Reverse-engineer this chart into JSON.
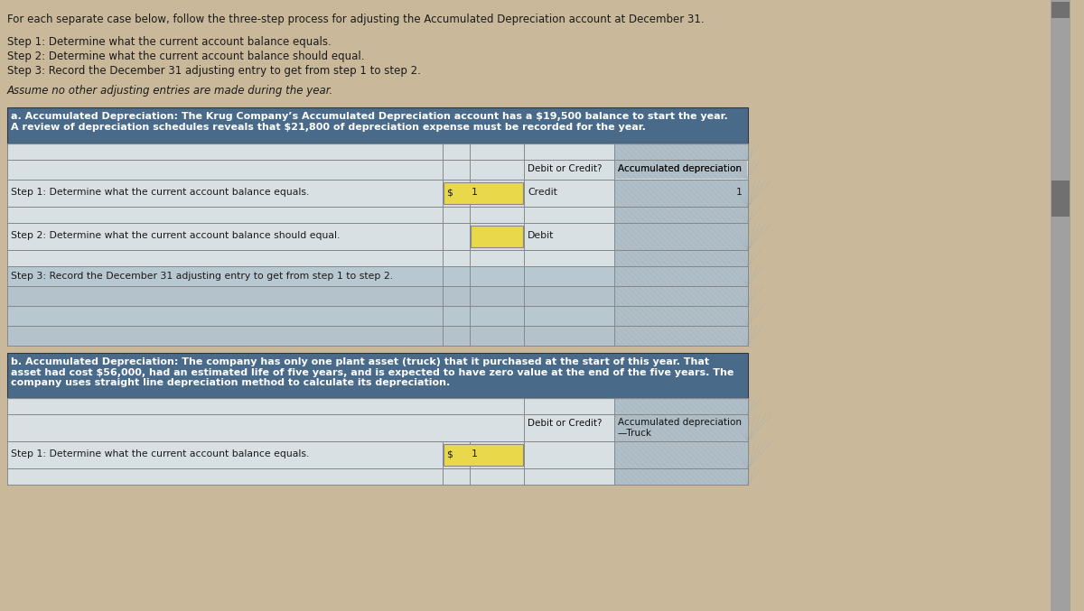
{
  "page_bg": "#c9b99a",
  "header_text": "For each separate case below, follow the three-step process for adjusting the Accumulated Depreciation account at December 31.",
  "step1_text": "Step 1: Determine what the current account balance equals.",
  "step2_text": "Step 2: Determine what the current account balance should equal.",
  "step3_text": "Step 3: Record the December 31 adjusting entry to get from step 1 to step 2.",
  "assume_text": "Assume no other adjusting entries are made during the year.",
  "section_a_header": "a. Accumulated Depreciation: The Krug Company’s Accumulated Depreciation account has a $19,500 balance to start the year.\nA review of depreciation schedules reveals that $21,800 of depreciation expense must be recorded for the year.",
  "section_b_header": "b. Accumulated Depreciation: The company has only one plant asset (truck) that it purchased at the start of this year. That\nasset had cost $56,000, had an estimated life of five years, and is expected to have zero value at the end of the five years. The\ncompany uses straight line depreciation method to calculate its depreciation.",
  "col_header1": "Debit or Credit?",
  "col_header2_a": "Accumulated depreciation",
  "col_header2_b": "Accumulated depreciation\n—Truck",
  "row_a1_label": "Step 1: Determine what the current account balance equals.",
  "row_a1_dollar": "$",
  "row_a1_num": "1",
  "row_a1_debit": "Credit",
  "row_a1_acc": "1",
  "row_a2_label": "Step 2: Determine what the current account balance should equal.",
  "row_a2_debit": "Debit",
  "row_a3_label": "Step 3: Record the December 31 adjusting entry to get from step 1 to step 2.",
  "row_b1_label": "Step 1: Determine what the current account balance equals.",
  "row_b1_dollar": "$",
  "row_b1_num": "1",
  "section_header_bg": "#4a6a8a",
  "table_border_color": "#888888",
  "yellow_cell_bg": "#e8d84a",
  "row_bg_medium": "#b8c8d0",
  "row_bg_light": "#ccd6dc",
  "row_bg_lighter": "#d8e0e4",
  "hatch_bg": "#b0bec8",
  "scrollbar_bg": "#a0a0a0",
  "scrollbar_thumb": "#707070",
  "step3_row_bg": "#a8b8c4",
  "empty_row_bg": "#b4c2cc"
}
